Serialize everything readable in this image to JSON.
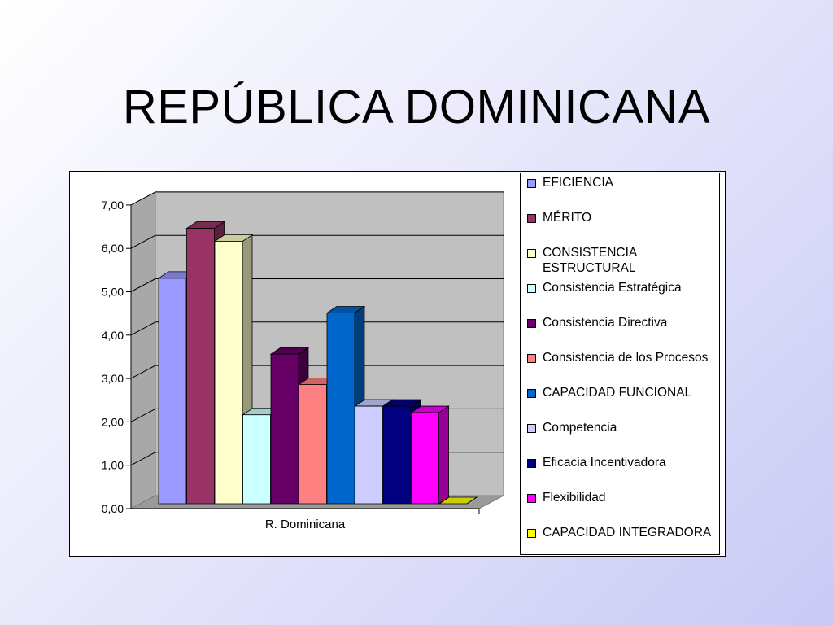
{
  "slide": {
    "title": "REPÚBLICA DOMINICANA"
  },
  "chart_data": {
    "type": "bar",
    "view": "3d-clustered-column",
    "categories": [
      "R. Dominicana"
    ],
    "ylim": [
      0,
      7
    ],
    "yticks": [
      "0,00",
      "1,00",
      "2,00",
      "3,00",
      "4,00",
      "5,00",
      "6,00",
      "7,00"
    ],
    "grid": true,
    "legend_position": "right",
    "series": [
      {
        "name": "EFICIENCIA",
        "values": [
          5.2
        ],
        "color": "#9999ff"
      },
      {
        "name": "MÉRITO",
        "values": [
          6.35
        ],
        "color": "#993366"
      },
      {
        "name": "CONSISTENCIA ESTRUCTURAL",
        "values": [
          6.05
        ],
        "color": "#ffffcc"
      },
      {
        "name": "Consistencia Estratégica",
        "values": [
          2.05
        ],
        "color": "#ccffff"
      },
      {
        "name": "Consistencia Directiva",
        "values": [
          3.45
        ],
        "color": "#660066"
      },
      {
        "name": "Consistencia de los Procesos",
        "values": [
          2.75
        ],
        "color": "#ff8080"
      },
      {
        "name": "CAPACIDAD FUNCIONAL",
        "values": [
          4.4
        ],
        "color": "#0066cc"
      },
      {
        "name": "Competencia",
        "values": [
          2.25
        ],
        "color": "#ccccff"
      },
      {
        "name": "Eficacia Incentivadora",
        "values": [
          2.25
        ],
        "color": "#000080"
      },
      {
        "name": "Flexibilidad",
        "values": [
          2.1
        ],
        "color": "#ff00ff"
      },
      {
        "name": "CAPACIDAD INTEGRADORA",
        "values": [
          0.0
        ],
        "color": "#ffff00"
      }
    ]
  }
}
